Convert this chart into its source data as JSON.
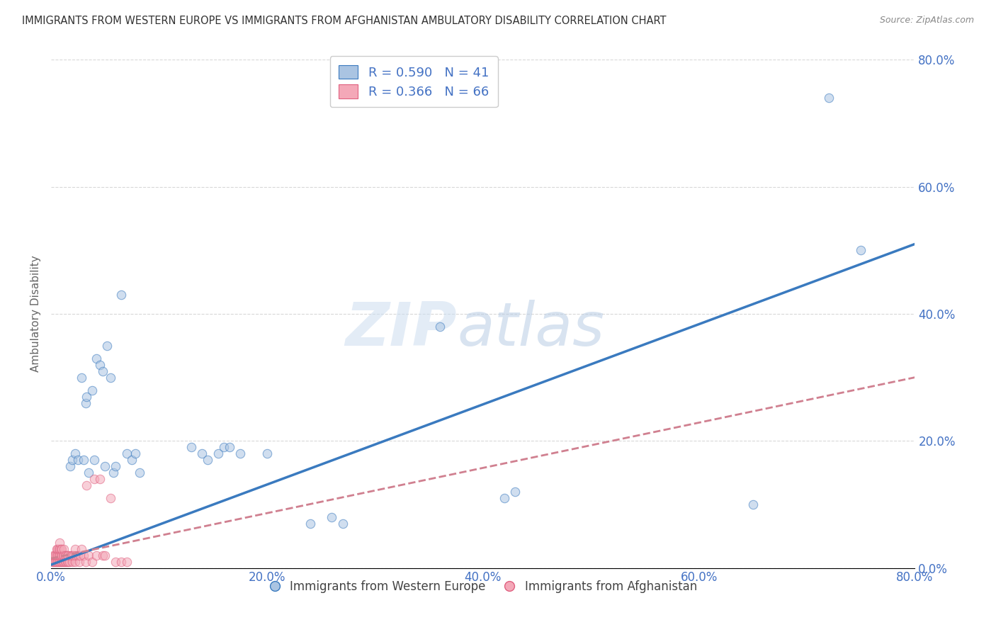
{
  "title": "IMMIGRANTS FROM WESTERN EUROPE VS IMMIGRANTS FROM AFGHANISTAN AMBULATORY DISABILITY CORRELATION CHART",
  "source": "Source: ZipAtlas.com",
  "ylabel_label": "Ambulatory Disability",
  "legend1_label": "Immigrants from Western Europe",
  "legend2_label": "Immigrants from Afghanistan",
  "R1": 0.59,
  "N1": 41,
  "R2": 0.366,
  "N2": 66,
  "blue_color": "#aac4e2",
  "blue_line_color": "#3a7abf",
  "pink_color": "#f4a8b8",
  "pink_line_color": "#e06080",
  "pink_dash_color": "#d08090",
  "background_color": "#ffffff",
  "grid_color": "#d8d8d8",
  "title_color": "#333333",
  "axis_label_color": "#4472c4",
  "blue_scatter": [
    [
      1.8,
      16.0
    ],
    [
      2.0,
      17.0
    ],
    [
      2.2,
      18.0
    ],
    [
      2.5,
      17.0
    ],
    [
      2.8,
      30.0
    ],
    [
      3.0,
      17.0
    ],
    [
      3.2,
      26.0
    ],
    [
      3.3,
      27.0
    ],
    [
      3.5,
      15.0
    ],
    [
      3.8,
      28.0
    ],
    [
      4.0,
      17.0
    ],
    [
      4.2,
      33.0
    ],
    [
      4.5,
      32.0
    ],
    [
      4.8,
      31.0
    ],
    [
      5.0,
      16.0
    ],
    [
      5.2,
      35.0
    ],
    [
      5.5,
      30.0
    ],
    [
      5.8,
      15.0
    ],
    [
      6.0,
      16.0
    ],
    [
      6.5,
      43.0
    ],
    [
      7.0,
      18.0
    ],
    [
      7.5,
      17.0
    ],
    [
      7.8,
      18.0
    ],
    [
      8.2,
      15.0
    ],
    [
      13.0,
      19.0
    ],
    [
      14.0,
      18.0
    ],
    [
      14.5,
      17.0
    ],
    [
      15.5,
      18.0
    ],
    [
      16.0,
      19.0
    ],
    [
      16.5,
      19.0
    ],
    [
      17.5,
      18.0
    ],
    [
      20.0,
      18.0
    ],
    [
      24.0,
      7.0
    ],
    [
      26.0,
      8.0
    ],
    [
      27.0,
      7.0
    ],
    [
      36.0,
      38.0
    ],
    [
      42.0,
      11.0
    ],
    [
      43.0,
      12.0
    ],
    [
      65.0,
      10.0
    ],
    [
      72.0,
      74.0
    ],
    [
      75.0,
      50.0
    ]
  ],
  "pink_scatter": [
    [
      0.1,
      1.0
    ],
    [
      0.2,
      1.0
    ],
    [
      0.2,
      2.0
    ],
    [
      0.3,
      1.0
    ],
    [
      0.3,
      2.0
    ],
    [
      0.4,
      1.0
    ],
    [
      0.4,
      2.0
    ],
    [
      0.5,
      1.0
    ],
    [
      0.5,
      2.0
    ],
    [
      0.5,
      3.0
    ],
    [
      0.6,
      1.0
    ],
    [
      0.6,
      2.0
    ],
    [
      0.6,
      3.0
    ],
    [
      0.7,
      1.0
    ],
    [
      0.7,
      2.0
    ],
    [
      0.7,
      3.0
    ],
    [
      0.8,
      1.0
    ],
    [
      0.8,
      2.0
    ],
    [
      0.8,
      3.0
    ],
    [
      0.8,
      4.0
    ],
    [
      0.9,
      1.0
    ],
    [
      0.9,
      2.0
    ],
    [
      0.9,
      3.0
    ],
    [
      1.0,
      1.0
    ],
    [
      1.0,
      2.0
    ],
    [
      1.0,
      3.0
    ],
    [
      1.1,
      1.0
    ],
    [
      1.1,
      2.0
    ],
    [
      1.2,
      1.0
    ],
    [
      1.2,
      2.0
    ],
    [
      1.2,
      3.0
    ],
    [
      1.3,
      1.0
    ],
    [
      1.3,
      2.0
    ],
    [
      1.4,
      1.0
    ],
    [
      1.4,
      2.0
    ],
    [
      1.5,
      1.0
    ],
    [
      1.5,
      2.0
    ],
    [
      1.6,
      1.0
    ],
    [
      1.6,
      2.0
    ],
    [
      1.7,
      1.0
    ],
    [
      1.8,
      2.0
    ],
    [
      1.9,
      2.0
    ],
    [
      2.0,
      1.0
    ],
    [
      2.0,
      2.0
    ],
    [
      2.1,
      2.0
    ],
    [
      2.2,
      1.0
    ],
    [
      2.2,
      3.0
    ],
    [
      2.3,
      2.0
    ],
    [
      2.5,
      2.0
    ],
    [
      2.6,
      1.0
    ],
    [
      2.7,
      2.0
    ],
    [
      2.8,
      3.0
    ],
    [
      3.0,
      2.0
    ],
    [
      3.2,
      1.0
    ],
    [
      3.3,
      13.0
    ],
    [
      3.5,
      2.0
    ],
    [
      3.8,
      1.0
    ],
    [
      4.0,
      14.0
    ],
    [
      4.2,
      2.0
    ],
    [
      4.5,
      14.0
    ],
    [
      4.8,
      2.0
    ],
    [
      5.0,
      2.0
    ],
    [
      5.5,
      11.0
    ],
    [
      6.0,
      1.0
    ],
    [
      6.5,
      1.0
    ],
    [
      7.0,
      1.0
    ]
  ],
  "watermark_zip": "ZIP",
  "watermark_atlas": "atlas",
  "xlim": [
    0.0,
    80.0
  ],
  "ylim": [
    0.0,
    80.0
  ],
  "xticks": [
    0.0,
    20.0,
    40.0,
    60.0,
    80.0
  ],
  "yticks": [
    0.0,
    20.0,
    40.0,
    60.0,
    80.0
  ],
  "xtick_labels": [
    "0.0%",
    "20.0%",
    "40.0%",
    "60.0%",
    "80.0%"
  ],
  "ytick_labels_right": [
    "0.0%",
    "20.0%",
    "40.0%",
    "60.0%",
    "80.0%"
  ],
  "marker_size": 80,
  "marker_alpha": 0.55,
  "blue_trendline_x": [
    0.0,
    80.0
  ],
  "blue_trendline_y": [
    0.5,
    51.0
  ],
  "pink_trendline_x": [
    0.0,
    80.0
  ],
  "pink_trendline_y": [
    1.5,
    30.0
  ]
}
